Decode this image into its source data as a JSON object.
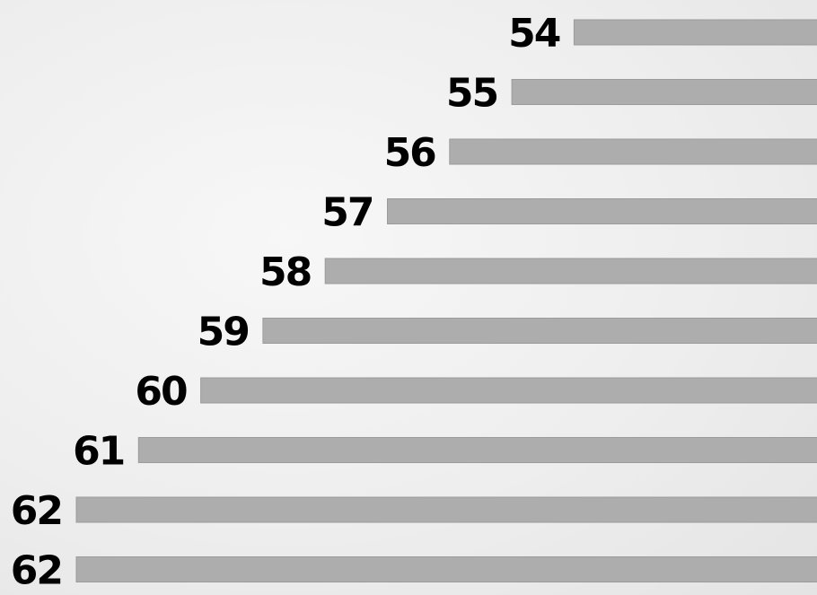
{
  "chart_data": {
    "type": "bar",
    "orientation": "horizontal",
    "values": [
      54,
      55,
      56,
      57,
      58,
      59,
      60,
      61,
      62,
      62
    ],
    "value_labels": [
      "54",
      "55",
      "56",
      "57",
      "58",
      "59",
      "60",
      "61",
      "62",
      "62"
    ],
    "title": "",
    "xlabel": "",
    "ylabel": "",
    "grid": false,
    "legend": "none",
    "colors": {
      "bar": "#adadad",
      "label": "#000000",
      "background": "#eeeeee"
    }
  }
}
